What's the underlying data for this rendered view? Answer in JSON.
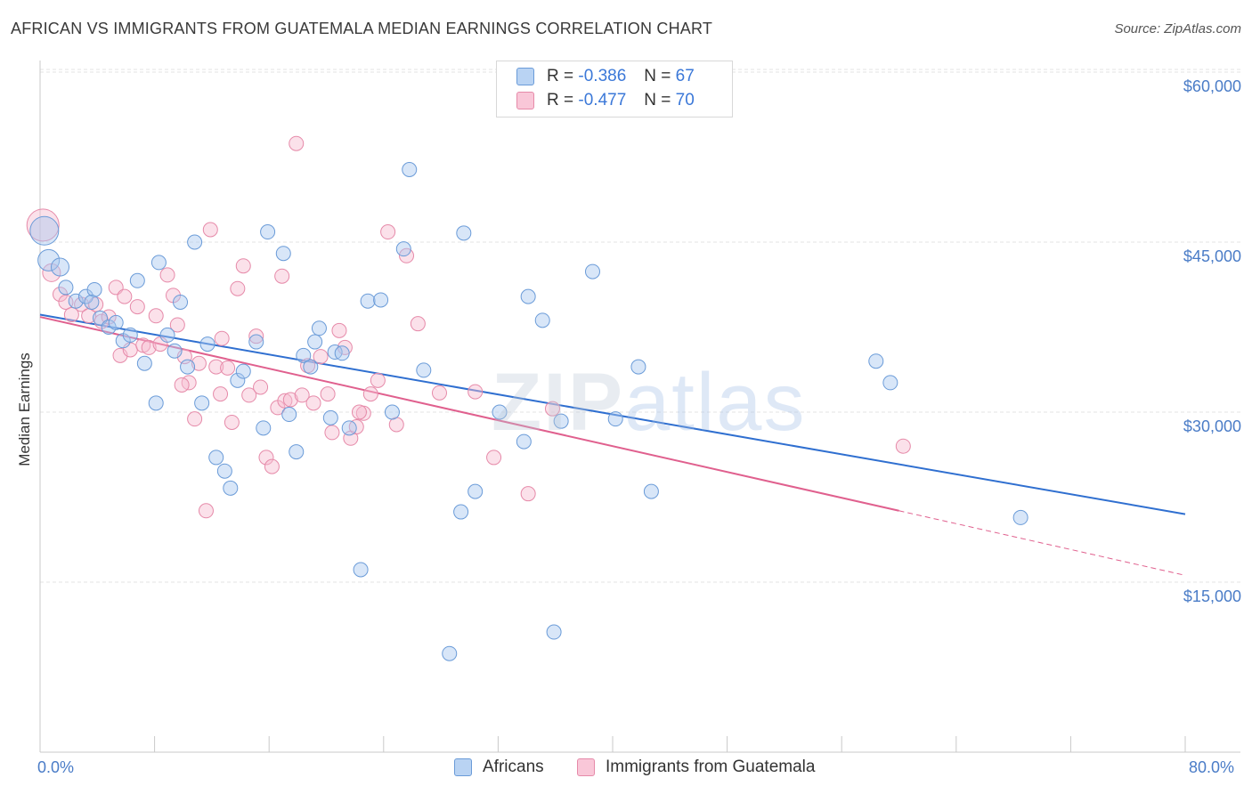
{
  "title": "AFRICAN VS IMMIGRANTS FROM GUATEMALA MEDIAN EARNINGS CORRELATION CHART",
  "source": "Source: ZipAtlas.com",
  "watermark": {
    "bold": "ZIP",
    "light": "atlas"
  },
  "colors": {
    "africans_fill": "#a9c8f0",
    "africans_stroke": "#6a9bd8",
    "africans_line": "#2f6fd0",
    "guatemala_fill": "#f7bcd0",
    "guatemala_stroke": "#e68aa9",
    "guatemala_line": "#e0608e",
    "grid": "#e3e3e3",
    "axis_text": "#4a7cc7"
  },
  "legend": {
    "r_label": "R =",
    "n_label": "N =",
    "africans": {
      "r": "-0.386",
      "n": "67"
    },
    "guatemala": {
      "r": "-0.477",
      "n": "70"
    }
  },
  "chart_data": {
    "type": "scatter",
    "title": "AFRICAN VS IMMIGRANTS FROM GUATEMALA MEDIAN EARNINGS CORRELATION CHART",
    "xlabel": "",
    "ylabel": "Median Earnings",
    "xlim": [
      0,
      80
    ],
    "ylim": [
      0,
      62000
    ],
    "x_tick_labels": [
      "0.0%",
      "80.0%"
    ],
    "y_ticks": [
      15000,
      30000,
      45000,
      60000
    ],
    "y_tick_labels": [
      "$15,000",
      "$30,000",
      "$45,000",
      "$60,000"
    ],
    "grid": true,
    "series": [
      {
        "name": "Africans",
        "trend": {
          "x": [
            0,
            80
          ],
          "y": [
            38600,
            21000
          ]
        },
        "points": [
          [
            0.3,
            46000,
            16
          ],
          [
            0.6,
            43400,
            12
          ],
          [
            1.4,
            42800,
            10
          ],
          [
            1.8,
            41000,
            8
          ],
          [
            2.5,
            39800,
            8
          ],
          [
            3.2,
            40200,
            8
          ],
          [
            3.8,
            40800,
            8
          ],
          [
            4.2,
            38300,
            8
          ],
          [
            4.8,
            37500,
            8
          ],
          [
            5.3,
            37900,
            8
          ],
          [
            5.8,
            36300,
            8
          ],
          [
            6.3,
            36800,
            8
          ],
          [
            7.3,
            34300,
            8
          ],
          [
            8.1,
            30800,
            8
          ],
          [
            8.3,
            43200,
            8
          ],
          [
            6.8,
            41600,
            8
          ],
          [
            8.9,
            36800,
            8
          ],
          [
            9.4,
            35400,
            8
          ],
          [
            9.8,
            39700,
            8
          ],
          [
            10.3,
            34000,
            8
          ],
          [
            10.8,
            45000,
            8
          ],
          [
            11.3,
            30800,
            8
          ],
          [
            11.7,
            36000,
            8
          ],
          [
            12.3,
            26000,
            8
          ],
          [
            12.9,
            24800,
            8
          ],
          [
            13.3,
            23300,
            8
          ],
          [
            13.8,
            32800,
            8
          ],
          [
            14.2,
            33600,
            8
          ],
          [
            15.1,
            36200,
            8
          ],
          [
            15.6,
            28600,
            8
          ],
          [
            15.9,
            45900,
            8
          ],
          [
            17.0,
            44000,
            8
          ],
          [
            17.4,
            29800,
            8
          ],
          [
            17.9,
            26500,
            8
          ],
          [
            18.4,
            35000,
            8
          ],
          [
            18.9,
            34000,
            8
          ],
          [
            19.5,
            37400,
            8
          ],
          [
            19.2,
            36200,
            8
          ],
          [
            20.3,
            29500,
            8
          ],
          [
            20.6,
            35300,
            8
          ],
          [
            21.1,
            35200,
            8
          ],
          [
            21.6,
            28600,
            8
          ],
          [
            22.4,
            16100,
            8
          ],
          [
            22.9,
            39800,
            8
          ],
          [
            23.8,
            39900,
            8
          ],
          [
            24.6,
            30000,
            8
          ],
          [
            25.4,
            44400,
            8
          ],
          [
            25.8,
            51400,
            8
          ],
          [
            26.8,
            33700,
            8
          ],
          [
            28.6,
            8700,
            8
          ],
          [
            29.4,
            21200,
            8
          ],
          [
            29.6,
            45800,
            8
          ],
          [
            30.4,
            23000,
            8
          ],
          [
            32.1,
            30000,
            8
          ],
          [
            33.8,
            27400,
            8
          ],
          [
            34.1,
            40200,
            8
          ],
          [
            35.1,
            38100,
            8
          ],
          [
            35.9,
            10600,
            8
          ],
          [
            36.4,
            29200,
            8
          ],
          [
            38.6,
            42400,
            8
          ],
          [
            40.2,
            29400,
            8
          ],
          [
            41.8,
            34000,
            8
          ],
          [
            42.7,
            23000,
            8
          ],
          [
            58.4,
            34500,
            8
          ],
          [
            59.4,
            32600,
            8
          ],
          [
            68.5,
            20700,
            8
          ],
          [
            3.6,
            39700,
            8
          ]
        ]
      },
      {
        "name": "Immigrants from Guatemala",
        "trend": {
          "x": [
            0,
            60
          ],
          "y": [
            38400,
            21300
          ]
        },
        "trend_dashed": {
          "x": [
            60,
            80
          ],
          "y": [
            21300,
            15600
          ]
        },
        "points": [
          [
            0.2,
            46500,
            18
          ],
          [
            0.8,
            42300,
            10
          ],
          [
            1.4,
            40400,
            8
          ],
          [
            1.8,
            39700,
            8
          ],
          [
            2.2,
            38600,
            8
          ],
          [
            2.9,
            39500,
            8
          ],
          [
            3.4,
            38500,
            8
          ],
          [
            3.9,
            39500,
            8
          ],
          [
            4.3,
            38000,
            8
          ],
          [
            4.8,
            38400,
            8
          ],
          [
            5.3,
            41000,
            8
          ],
          [
            5.6,
            35000,
            8
          ],
          [
            5.9,
            40200,
            8
          ],
          [
            6.3,
            35500,
            8
          ],
          [
            6.8,
            39300,
            8
          ],
          [
            7.2,
            35900,
            8
          ],
          [
            7.6,
            35700,
            8
          ],
          [
            8.1,
            38500,
            8
          ],
          [
            8.4,
            36000,
            8
          ],
          [
            8.9,
            42100,
            8
          ],
          [
            9.3,
            40300,
            8
          ],
          [
            9.6,
            37700,
            8
          ],
          [
            10.1,
            34900,
            8
          ],
          [
            10.4,
            32600,
            8
          ],
          [
            10.8,
            29400,
            8
          ],
          [
            11.1,
            34300,
            8
          ],
          [
            11.6,
            21300,
            8
          ],
          [
            11.9,
            46100,
            8
          ],
          [
            12.3,
            34000,
            8
          ],
          [
            12.6,
            31600,
            8
          ],
          [
            13.1,
            33900,
            8
          ],
          [
            13.4,
            29100,
            8
          ],
          [
            13.8,
            40900,
            8
          ],
          [
            14.2,
            42900,
            8
          ],
          [
            14.6,
            31500,
            8
          ],
          [
            15.1,
            36700,
            8
          ],
          [
            15.4,
            32200,
            8
          ],
          [
            15.8,
            26000,
            8
          ],
          [
            16.2,
            25200,
            8
          ],
          [
            16.6,
            30400,
            8
          ],
          [
            17.1,
            31000,
            8
          ],
          [
            17.5,
            31100,
            8
          ],
          [
            17.9,
            53700,
            8
          ],
          [
            18.3,
            31500,
            8
          ],
          [
            18.7,
            34100,
            8
          ],
          [
            19.1,
            30800,
            8
          ],
          [
            19.6,
            34900,
            8
          ],
          [
            20.1,
            31600,
            8
          ],
          [
            20.4,
            28200,
            8
          ],
          [
            20.9,
            37200,
            8
          ],
          [
            21.3,
            35700,
            8
          ],
          [
            21.7,
            27700,
            8
          ],
          [
            22.1,
            28700,
            8
          ],
          [
            22.6,
            29900,
            8
          ],
          [
            23.1,
            31600,
            8
          ],
          [
            23.6,
            32800,
            8
          ],
          [
            24.3,
            45900,
            8
          ],
          [
            24.9,
            28900,
            8
          ],
          [
            25.6,
            43800,
            8
          ],
          [
            26.4,
            37800,
            8
          ],
          [
            27.9,
            31700,
            8
          ],
          [
            30.4,
            31800,
            8
          ],
          [
            31.7,
            26000,
            8
          ],
          [
            34.1,
            22800,
            8
          ],
          [
            35.8,
            30300,
            8
          ],
          [
            60.3,
            27000,
            8
          ],
          [
            9.9,
            32400,
            8
          ],
          [
            12.7,
            36500,
            8
          ],
          [
            16.9,
            42000,
            8
          ],
          [
            22.3,
            30000,
            8
          ]
        ]
      }
    ]
  }
}
